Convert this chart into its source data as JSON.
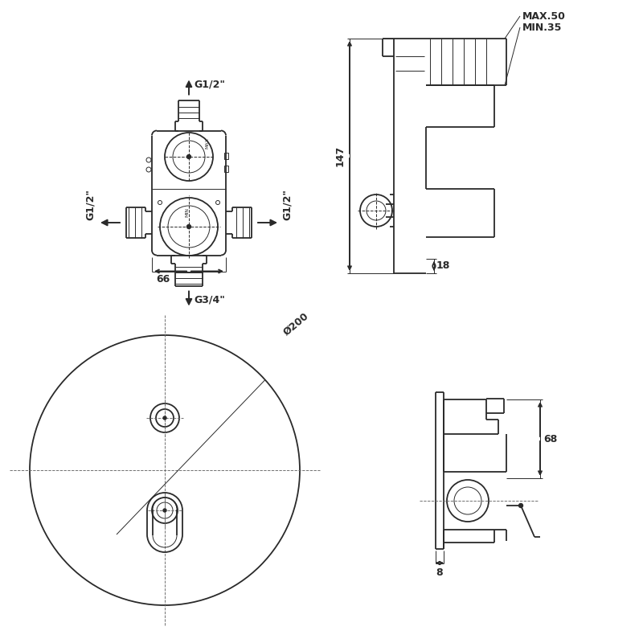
{
  "bg_color": "#ffffff",
  "lc": "#2a2a2a",
  "lc_dim": "#1a1a1a",
  "lw": 1.3,
  "lt": 0.7,
  "ld": 0.65,
  "labels": {
    "top": "G1/2\"",
    "left": "G1/2\"",
    "right": "G1/2\"",
    "bottom": "G3/4\"",
    "d66": "66",
    "d147": "147",
    "d18": "18",
    "dmax": "MAX.50",
    "dmin": "MIN.35",
    "d200": "Ø200",
    "d68": "68",
    "d8": "8"
  }
}
